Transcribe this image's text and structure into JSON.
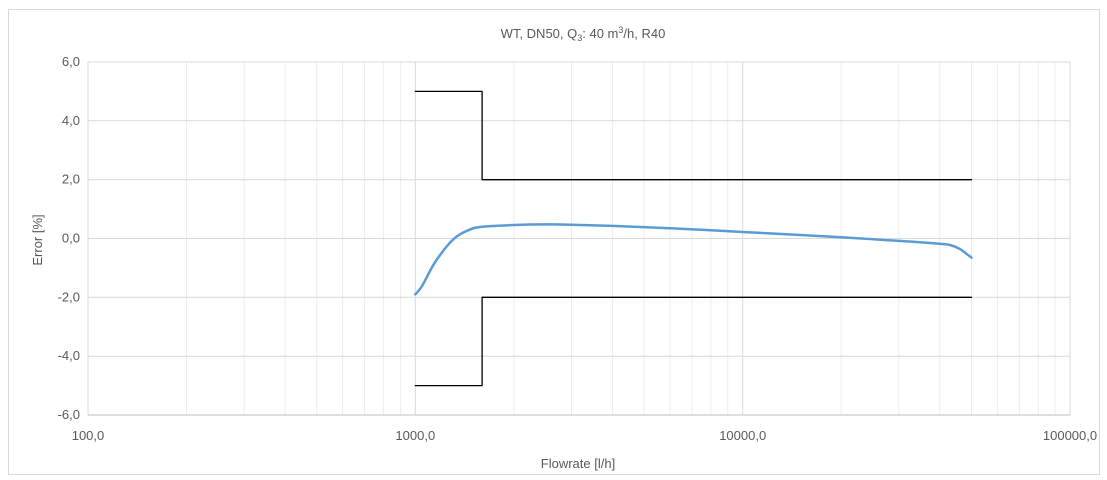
{
  "chart_data": {
    "type": "line",
    "title": {
      "prefix": "WT, DN50, Q",
      "subscript": "3",
      "mid": ": 40 m",
      "superscript": "3",
      "suffix": "/h, R40"
    },
    "xlabel": "Flowrate [l/h]",
    "ylabel": "Error [%]",
    "x_scale": "log",
    "xlim": [
      100,
      100000
    ],
    "ylim": [
      -6,
      6
    ],
    "x_ticks": [
      100,
      1000,
      10000,
      100000
    ],
    "x_tick_labels": [
      "100,0",
      "1000,0",
      "10000,0",
      "100000,0"
    ],
    "y_ticks": [
      -6,
      -4,
      -2,
      0,
      2,
      4,
      6
    ],
    "y_tick_labels": [
      "-6,0",
      "-4,0",
      "-2,0",
      "0,0",
      "2,0",
      "4,0",
      "6,0"
    ],
    "grid": true,
    "legend": "none",
    "colors": {
      "curve": "#5b9bd5",
      "limits": "#000000",
      "grid": "#d9d9d9"
    },
    "series": [
      {
        "role": "upper-limit",
        "x": [
          1000,
          1600,
          1600,
          50000
        ],
        "y": [
          5,
          5,
          2,
          2
        ]
      },
      {
        "role": "lower-limit",
        "x": [
          1000,
          1600,
          1600,
          50000
        ],
        "y": [
          -5,
          -5,
          -2,
          -2
        ]
      },
      {
        "role": "error-curve",
        "x": [
          1000,
          1050,
          1150,
          1300,
          1450,
          1600,
          2000,
          2500,
          3000,
          4000,
          6000,
          10000,
          15000,
          20000,
          30000,
          40000,
          43000,
          46000,
          48000,
          50000
        ],
        "y": [
          -1.9,
          -1.6,
          -0.8,
          -0.05,
          0.28,
          0.4,
          0.46,
          0.48,
          0.47,
          0.43,
          0.35,
          0.22,
          0.12,
          0.04,
          -0.08,
          -0.18,
          -0.22,
          -0.35,
          -0.5,
          -0.65
        ]
      }
    ]
  }
}
